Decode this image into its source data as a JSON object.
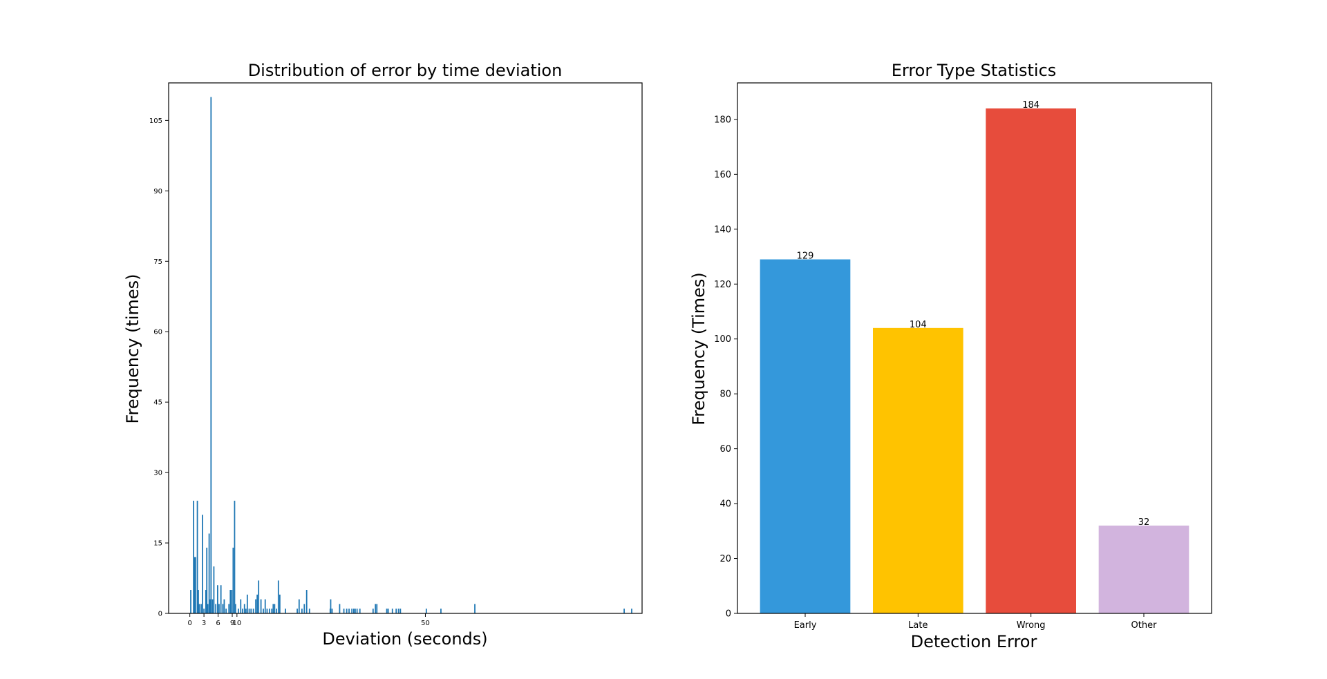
{
  "chart_data": [
    {
      "type": "bar",
      "title": "Distribution of error by time deviation",
      "xlabel": "Deviation (seconds)",
      "ylabel": "Frequency (times)",
      "xticks": [
        0,
        3,
        6,
        9,
        10,
        50
      ],
      "yticks": [
        0,
        15,
        30,
        45,
        60,
        75,
        90,
        105
      ],
      "xlim": [
        -4.5,
        96
      ],
      "ylim": [
        0,
        113
      ],
      "grid": false,
      "bar_color": "#1f77b4",
      "bars": [
        [
          0.2,
          5
        ],
        [
          0.8,
          24
        ],
        [
          1.0,
          12
        ],
        [
          1.2,
          12
        ],
        [
          1.6,
          24
        ],
        [
          1.8,
          5
        ],
        [
          2.0,
          2
        ],
        [
          2.4,
          2
        ],
        [
          2.7,
          21
        ],
        [
          3.0,
          1
        ],
        [
          3.4,
          5
        ],
        [
          3.6,
          14
        ],
        [
          3.8,
          2
        ],
        [
          4.1,
          17
        ],
        [
          4.3,
          3
        ],
        [
          4.5,
          110
        ],
        [
          4.8,
          3
        ],
        [
          5.1,
          10
        ],
        [
          5.5,
          2
        ],
        [
          5.9,
          6
        ],
        [
          6.2,
          2
        ],
        [
          6.6,
          6
        ],
        [
          7.0,
          2
        ],
        [
          7.3,
          3
        ],
        [
          7.7,
          1
        ],
        [
          8.3,
          2
        ],
        [
          8.6,
          5
        ],
        [
          8.9,
          5
        ],
        [
          9.2,
          14
        ],
        [
          9.5,
          24
        ],
        [
          9.7,
          2
        ],
        [
          10.3,
          1
        ],
        [
          10.8,
          3
        ],
        [
          11.2,
          1
        ],
        [
          11.6,
          2
        ],
        [
          11.9,
          1
        ],
        [
          12.2,
          4
        ],
        [
          12.6,
          1
        ],
        [
          13.0,
          1
        ],
        [
          13.5,
          1
        ],
        [
          14.0,
          3
        ],
        [
          14.3,
          4
        ],
        [
          14.6,
          7
        ],
        [
          15.1,
          3
        ],
        [
          15.6,
          1
        ],
        [
          16.0,
          3
        ],
        [
          16.4,
          1
        ],
        [
          16.9,
          1
        ],
        [
          17.4,
          1
        ],
        [
          17.7,
          2
        ],
        [
          18.0,
          2
        ],
        [
          18.4,
          1
        ],
        [
          18.8,
          7
        ],
        [
          19.1,
          4
        ],
        [
          20.3,
          1
        ],
        [
          22.8,
          1
        ],
        [
          23.2,
          3
        ],
        [
          23.8,
          1
        ],
        [
          24.3,
          2
        ],
        [
          24.8,
          5
        ],
        [
          25.4,
          1
        ],
        [
          29.8,
          1
        ],
        [
          29.9,
          3
        ],
        [
          30.2,
          1
        ],
        [
          31.8,
          2
        ],
        [
          32.7,
          1
        ],
        [
          33.3,
          1
        ],
        [
          33.8,
          1
        ],
        [
          34.4,
          1
        ],
        [
          34.8,
          1
        ],
        [
          35.1,
          1
        ],
        [
          35.5,
          1
        ],
        [
          36.1,
          1
        ],
        [
          38.9,
          1
        ],
        [
          39.4,
          2
        ],
        [
          39.7,
          2
        ],
        [
          41.8,
          1
        ],
        [
          42.1,
          1
        ],
        [
          43.0,
          1
        ],
        [
          43.8,
          1
        ],
        [
          44.3,
          1
        ],
        [
          44.7,
          1
        ],
        [
          50.2,
          1
        ],
        [
          53.3,
          1
        ],
        [
          60.5,
          2
        ],
        [
          92.2,
          1
        ],
        [
          93.8,
          1
        ]
      ]
    },
    {
      "type": "bar",
      "title": "Error Type Statistics",
      "xlabel": "Detection Error",
      "ylabel": "Frequency (Times)",
      "categories": [
        "Early",
        "Late",
        "Wrong",
        "Other"
      ],
      "values": [
        129,
        104,
        184,
        32
      ],
      "colors": [
        "#3498db",
        "#ffc300",
        "#e74c3c",
        "#d2b4de"
      ],
      "yticks": [
        0,
        20,
        40,
        60,
        80,
        100,
        120,
        140,
        160,
        180
      ],
      "ylim": [
        0,
        184
      ],
      "grid": false
    }
  ]
}
